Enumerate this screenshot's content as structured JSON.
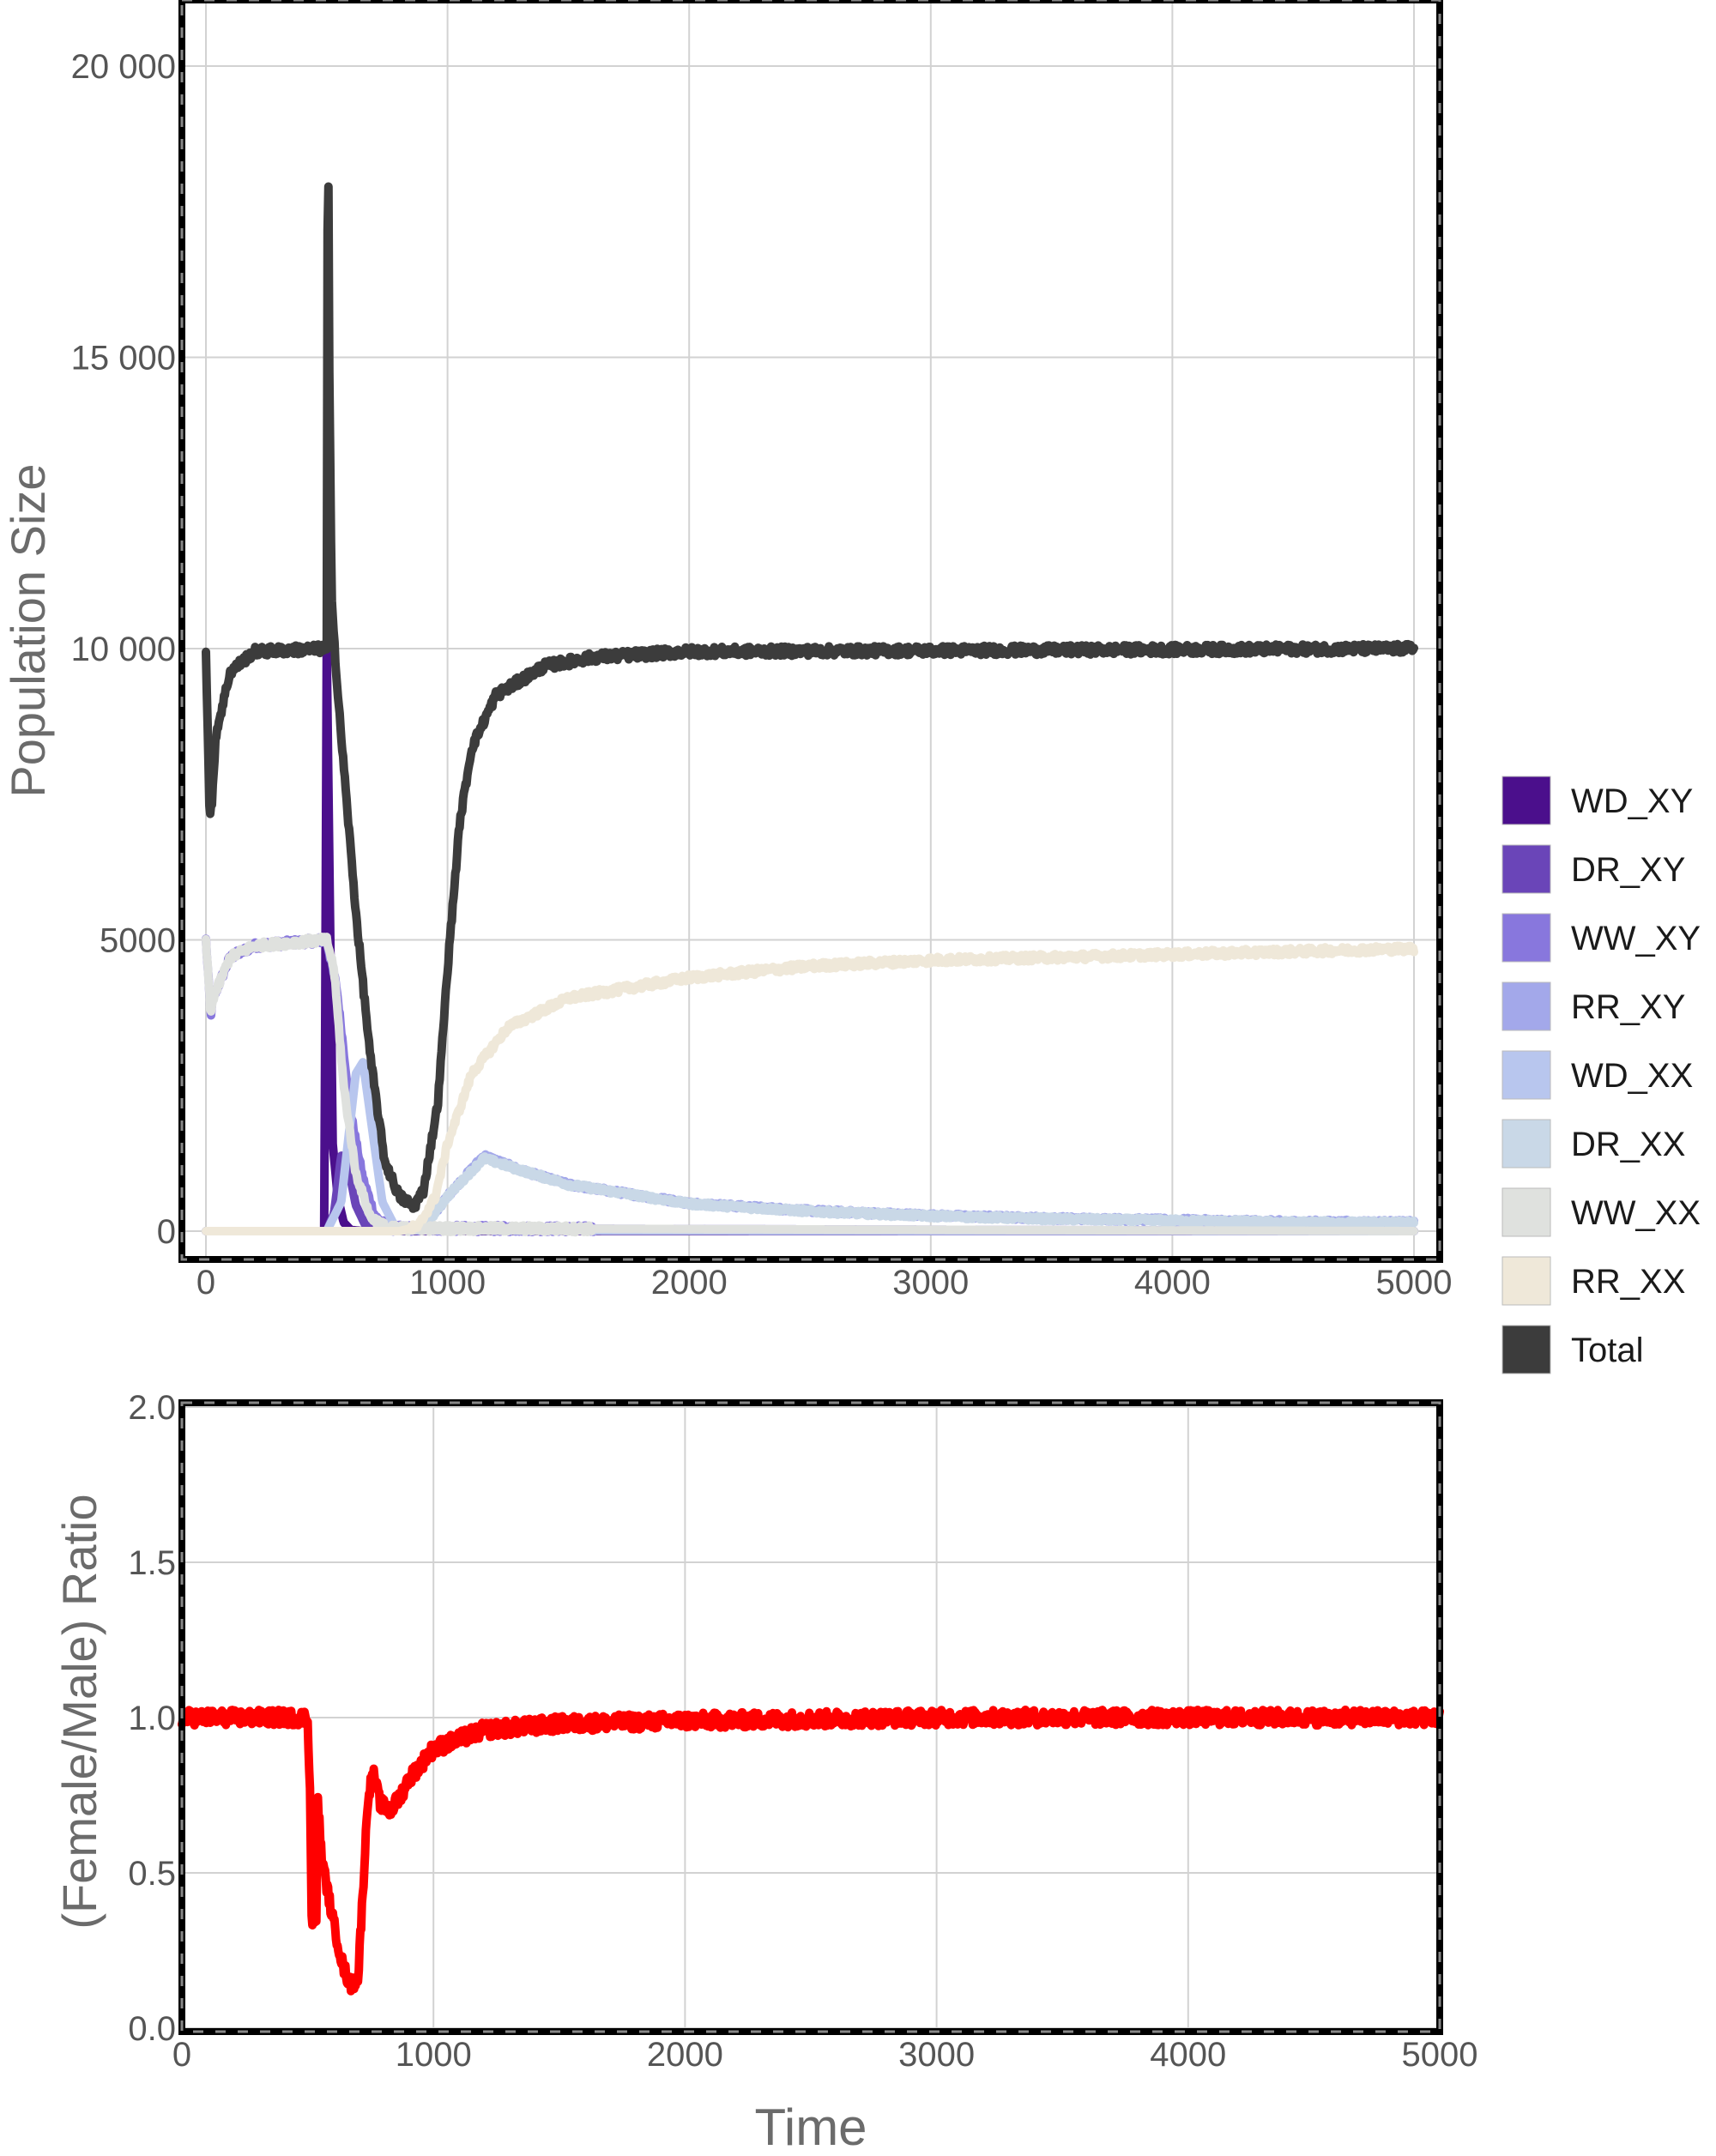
{
  "chart_data": [
    {
      "type": "line",
      "xlabel": "",
      "ylabel": "Population Size",
      "xlim": [
        0,
        5000
      ],
      "ylim": [
        0,
        20000
      ],
      "x_ticks": [
        0,
        1000,
        2000,
        3000,
        4000,
        5000
      ],
      "x_tick_labels": [
        "0",
        "1000",
        "2000",
        "3000",
        "4000",
        "5000"
      ],
      "y_ticks": [
        0,
        5000,
        10000,
        15000,
        20000
      ],
      "y_tick_labels": [
        "0",
        "5000",
        "10 000",
        "15 000",
        "20 000"
      ],
      "grid": true,
      "legend_position": "right",
      "series": [
        {
          "name": "WD_XY",
          "color": "#4b0f8c",
          "noise": 0,
          "points": [
            [
              0,
              0
            ],
            [
              490,
              0
            ],
            [
              500,
              10000
            ],
            [
              512,
              6000
            ],
            [
              525,
              1500
            ],
            [
              545,
              600
            ],
            [
              570,
              150
            ],
            [
              600,
              20
            ],
            [
              650,
              0
            ],
            [
              5000,
              0
            ]
          ]
        },
        {
          "name": "DR_XY",
          "color": "#6a45b8",
          "noise": 0,
          "points": [
            [
              0,
              0
            ],
            [
              500,
              0
            ],
            [
              530,
              300
            ],
            [
              560,
              1300
            ],
            [
              590,
              1100
            ],
            [
              620,
              450
            ],
            [
              660,
              100
            ],
            [
              720,
              10
            ],
            [
              5000,
              0
            ]
          ]
        },
        {
          "name": "WW_XY",
          "color": "#8877dd",
          "noise": 60,
          "points": [
            [
              0,
              5000
            ],
            [
              20,
              3700
            ],
            [
              30,
              4000
            ],
            [
              100,
              4700
            ],
            [
              200,
              4900
            ],
            [
              500,
              5000
            ],
            [
              540,
              4200
            ],
            [
              600,
              2000
            ],
            [
              650,
              900
            ],
            [
              700,
              250
            ],
            [
              760,
              50
            ],
            [
              5000,
              0
            ]
          ]
        },
        {
          "name": "RR_XY",
          "color": "#a3a8ea",
          "noise": 40,
          "points": [
            [
              0,
              0
            ],
            [
              800,
              0
            ],
            [
              900,
              50
            ],
            [
              1000,
              600
            ],
            [
              1150,
              1300
            ],
            [
              1300,
              1050
            ],
            [
              1500,
              800
            ],
            [
              2000,
              480
            ],
            [
              2500,
              350
            ],
            [
              3000,
              270
            ],
            [
              3500,
              220
            ],
            [
              4000,
              190
            ],
            [
              4500,
              160
            ],
            [
              5000,
              150
            ]
          ]
        },
        {
          "name": "WD_XX",
          "color": "#b8c6ee",
          "noise": 0,
          "points": [
            [
              0,
              0
            ],
            [
              500,
              0
            ],
            [
              560,
              500
            ],
            [
              620,
              2700
            ],
            [
              650,
              2900
            ],
            [
              690,
              1700
            ],
            [
              730,
              500
            ],
            [
              780,
              100
            ],
            [
              850,
              10
            ],
            [
              5000,
              0
            ]
          ]
        },
        {
          "name": "DR_XX",
          "color": "#c9d8e7",
          "noise": 40,
          "points": [
            [
              0,
              0
            ],
            [
              800,
              0
            ],
            [
              900,
              50
            ],
            [
              1000,
              600
            ],
            [
              1150,
              1250
            ],
            [
              1300,
              1050
            ],
            [
              1500,
              800
            ],
            [
              2000,
              470
            ],
            [
              2500,
              340
            ],
            [
              3000,
              260
            ],
            [
              3500,
              210
            ],
            [
              4000,
              180
            ],
            [
              4500,
              150
            ],
            [
              5000,
              140
            ]
          ]
        },
        {
          "name": "WW_XX",
          "color": "#dfe1de",
          "noise": 60,
          "points": [
            [
              0,
              5000
            ],
            [
              20,
              3700
            ],
            [
              30,
              4000
            ],
            [
              100,
              4700
            ],
            [
              200,
              4900
            ],
            [
              500,
              5000
            ],
            [
              530,
              4500
            ],
            [
              570,
              2500
            ],
            [
              620,
              1000
            ],
            [
              680,
              250
            ],
            [
              750,
              50
            ],
            [
              5000,
              0
            ]
          ]
        },
        {
          "name": "RR_XX",
          "color": "#efe8d9",
          "noise": 60,
          "points": [
            [
              0,
              0
            ],
            [
              800,
              0
            ],
            [
              880,
              80
            ],
            [
              950,
              600
            ],
            [
              1000,
              1500
            ],
            [
              1100,
              2700
            ],
            [
              1250,
              3500
            ],
            [
              1500,
              4000
            ],
            [
              2000,
              4350
            ],
            [
              2500,
              4550
            ],
            [
              3000,
              4650
            ],
            [
              3500,
              4700
            ],
            [
              4000,
              4750
            ],
            [
              4500,
              4800
            ],
            [
              5000,
              4850
            ]
          ]
        },
        {
          "name": "Total",
          "color": "#3c3c3c",
          "noise": 80,
          "points": [
            [
              0,
              10000
            ],
            [
              15,
              7200
            ],
            [
              25,
              7300
            ],
            [
              40,
              8500
            ],
            [
              100,
              9600
            ],
            [
              200,
              9950
            ],
            [
              500,
              10000
            ],
            [
              505,
              20000
            ],
            [
              510,
              15000
            ],
            [
              520,
              11000
            ],
            [
              540,
              9500
            ],
            [
              580,
              7500
            ],
            [
              620,
              5500
            ],
            [
              680,
              3000
            ],
            [
              740,
              1200
            ],
            [
              800,
              600
            ],
            [
              860,
              420
            ],
            [
              900,
              700
            ],
            [
              960,
              2200
            ],
            [
              1000,
              4500
            ],
            [
              1050,
              7000
            ],
            [
              1100,
              8300
            ],
            [
              1200,
              9200
            ],
            [
              1400,
              9700
            ],
            [
              1600,
              9850
            ],
            [
              2000,
              9950
            ],
            [
              5000,
              10000
            ]
          ]
        }
      ]
    },
    {
      "type": "line",
      "xlabel": "Time",
      "ylabel": "(Female/Male) Ratio",
      "xlim": [
        0,
        5000
      ],
      "ylim": [
        0.0,
        2.0
      ],
      "x_ticks": [
        0,
        1000,
        2000,
        3000,
        4000,
        5000
      ],
      "x_tick_labels": [
        "0",
        "1000",
        "2000",
        "3000",
        "4000",
        "5000"
      ],
      "y_ticks": [
        0.0,
        0.5,
        1.0,
        1.5,
        2.0
      ],
      "y_tick_labels": [
        "0.0",
        "0.5",
        "1.0",
        "1.5",
        "2.0"
      ],
      "grid": true,
      "series": [
        {
          "color": "#ff0000",
          "noise": 0.025,
          "points": [
            [
              0,
              1.0
            ],
            [
              500,
              1.0
            ],
            [
              510,
              0.75
            ],
            [
              515,
              0.35
            ],
            [
              535,
              0.35
            ],
            [
              540,
              0.75
            ],
            [
              555,
              0.55
            ],
            [
              600,
              0.35
            ],
            [
              640,
              0.2
            ],
            [
              670,
              0.14
            ],
            [
              700,
              0.16
            ],
            [
              720,
              0.45
            ],
            [
              740,
              0.75
            ],
            [
              760,
              0.82
            ],
            [
              790,
              0.72
            ],
            [
              830,
              0.7
            ],
            [
              870,
              0.75
            ],
            [
              900,
              0.8
            ],
            [
              1000,
              0.9
            ],
            [
              1200,
              0.96
            ],
            [
              1500,
              0.98
            ],
            [
              2000,
              0.99
            ],
            [
              3000,
              1.0
            ],
            [
              5000,
              1.0
            ]
          ]
        }
      ]
    }
  ],
  "legend": {
    "items": [
      {
        "label": "WD_XY",
        "color": "#4b0f8c"
      },
      {
        "label": "DR_XY",
        "color": "#6a45b8"
      },
      {
        "label": "WW_XY",
        "color": "#8877dd"
      },
      {
        "label": "RR_XY",
        "color": "#a3a8ea"
      },
      {
        "label": "WD_XX",
        "color": "#b8c6ee"
      },
      {
        "label": "DR_XX",
        "color": "#c9d8e7"
      },
      {
        "label": "WW_XX",
        "color": "#dfe1de"
      },
      {
        "label": "RR_XX",
        "color": "#efe8d9"
      },
      {
        "label": "Total",
        "color": "#3c3c3c"
      }
    ]
  }
}
